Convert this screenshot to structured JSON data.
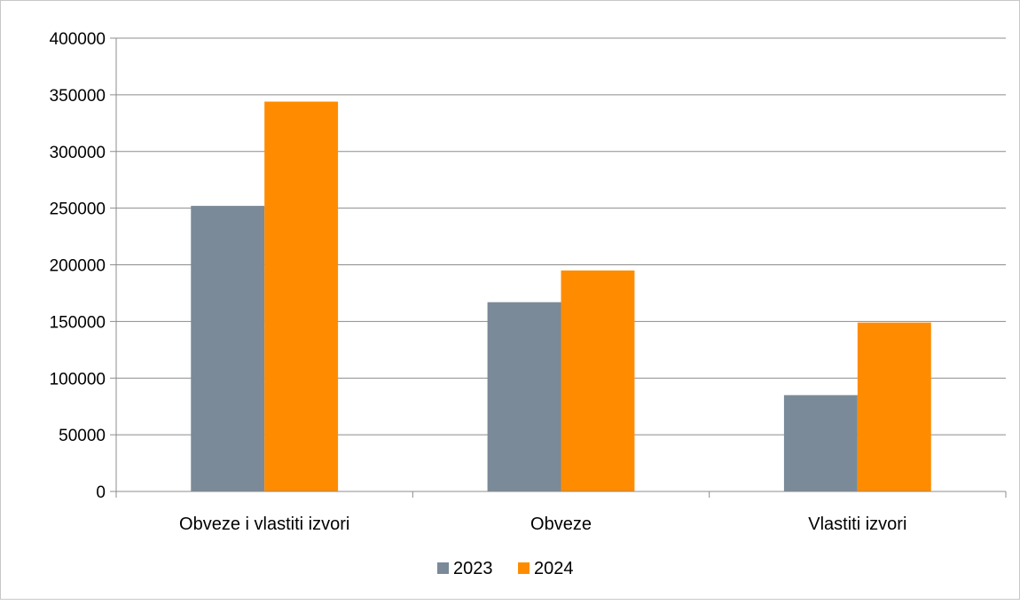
{
  "chart_data": {
    "type": "bar",
    "title": "",
    "xlabel": "",
    "ylabel": "",
    "categories": [
      "Obveze i vlastiti izvori",
      "Obveze",
      "Vlastiti izvori"
    ],
    "series": [
      {
        "name": "2023",
        "values": [
          252000,
          167000,
          85000
        ],
        "color": "#7a8a99"
      },
      {
        "name": "2024",
        "values": [
          344000,
          195000,
          149000
        ],
        "color": "#ff8c00"
      }
    ],
    "ylim": [
      0,
      400000
    ],
    "yticks": [
      "0",
      "50000",
      "100000",
      "150000",
      "200000",
      "250000",
      "300000",
      "350000",
      "400000"
    ],
    "grid": true,
    "legend": "bottom-center"
  }
}
